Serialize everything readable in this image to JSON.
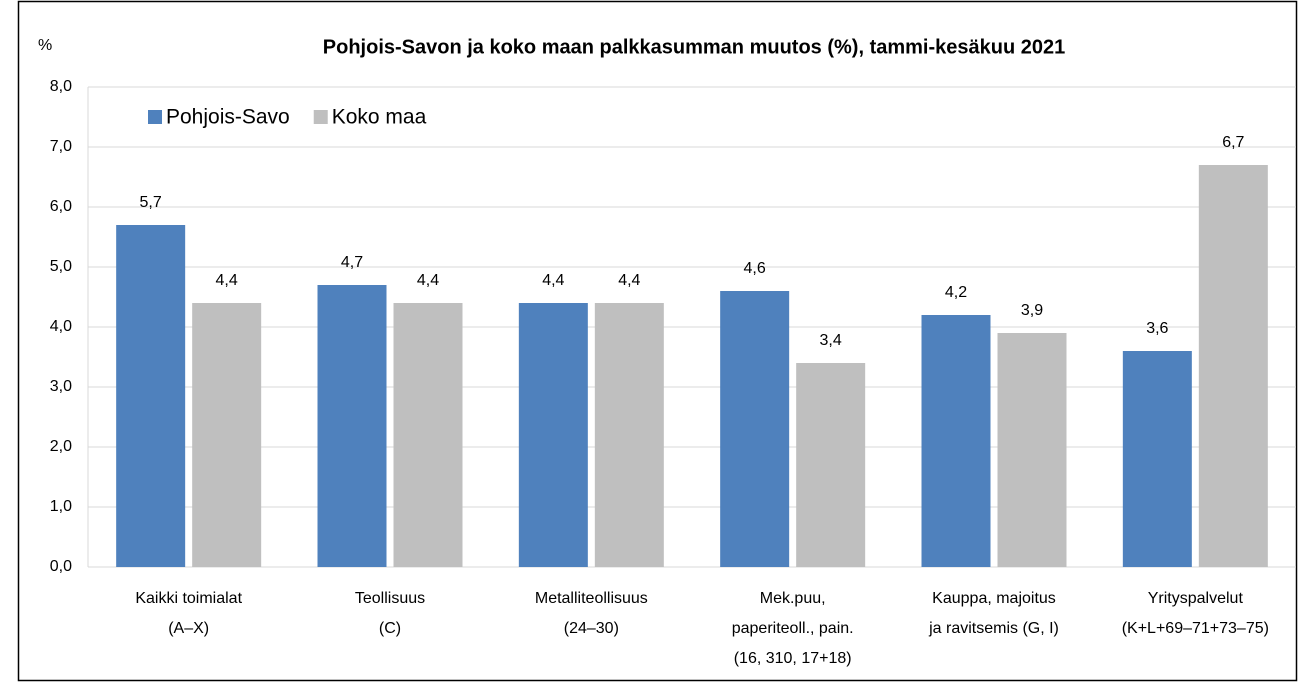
{
  "chart_data": {
    "type": "bar",
    "title": "Pohjois-Savon ja koko maan palkkasumman muutos (%), tammi-kesäkuu 2021",
    "y_label": "%",
    "categories": [
      [
        "Kaikki toimialat",
        "(A–X)"
      ],
      [
        "Teollisuus",
        "(C)"
      ],
      [
        "Metalliteollisuus",
        "(24–30)"
      ],
      [
        "Mek.puu,",
        "paperiteoll., pain.",
        "(16, 310, 17+18)"
      ],
      [
        "Kauppa, majoitus",
        "ja ravitsemis (G, I)"
      ],
      [
        "Yrityspalvelut",
        "(K+L+69–71+73–75)"
      ]
    ],
    "series": [
      {
        "name": "Pohjois-Savo",
        "color": "#4f81bd",
        "values": [
          5.7,
          4.7,
          4.4,
          4.6,
          4.2,
          3.6
        ],
        "value_labels": [
          "5,7",
          "4,7",
          "4,4",
          "4,6",
          "4,2",
          "3,6"
        ]
      },
      {
        "name": "Koko maa",
        "color": "#bfbfbf",
        "values": [
          4.4,
          4.4,
          4.4,
          3.4,
          3.9,
          6.7
        ],
        "value_labels": [
          "4,4",
          "4,4",
          "4,4",
          "3,4",
          "3,9",
          "6,7"
        ]
      }
    ],
    "ylim": [
      0,
      8
    ],
    "yticks": [
      {
        "value": 0,
        "label": "0,0"
      },
      {
        "value": 1,
        "label": "1,0"
      },
      {
        "value": 2,
        "label": "2,0"
      },
      {
        "value": 3,
        "label": "3,0"
      },
      {
        "value": 4,
        "label": "4,0"
      },
      {
        "value": 5,
        "label": "5,0"
      },
      {
        "value": 6,
        "label": "6,0"
      },
      {
        "value": 7,
        "label": "7,0"
      },
      {
        "value": 8,
        "label": "8,0"
      }
    ],
    "grid": true,
    "legend": "top-left"
  }
}
